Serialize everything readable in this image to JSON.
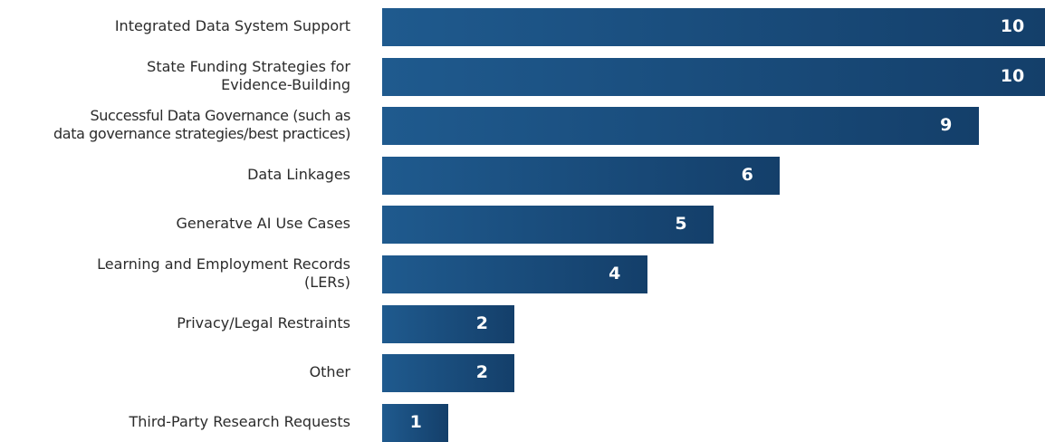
{
  "chart_data": {
    "type": "bar",
    "orientation": "horizontal",
    "categories": [
      "Integrated Data System Support",
      "State Funding Strategies for\nEvidence-Building",
      "Successful Data Governance (such as\ndata governance strategies/best practices)",
      "Data Linkages",
      "Generatve AI Use Cases",
      "Learning and Employment Records\n(LERs)",
      "Privacy/Legal Restraints",
      "Other",
      "Third-Party Research Requests"
    ],
    "values": [
      10,
      10,
      9,
      6,
      5,
      4,
      2,
      2,
      1
    ],
    "data_labels": [
      "10",
      "10",
      "9",
      "6",
      "5",
      "4",
      "2",
      "2",
      "1"
    ],
    "xlim": [
      0,
      10
    ],
    "bar_color": "#1a4e7e",
    "grid": false,
    "legend": "none"
  }
}
